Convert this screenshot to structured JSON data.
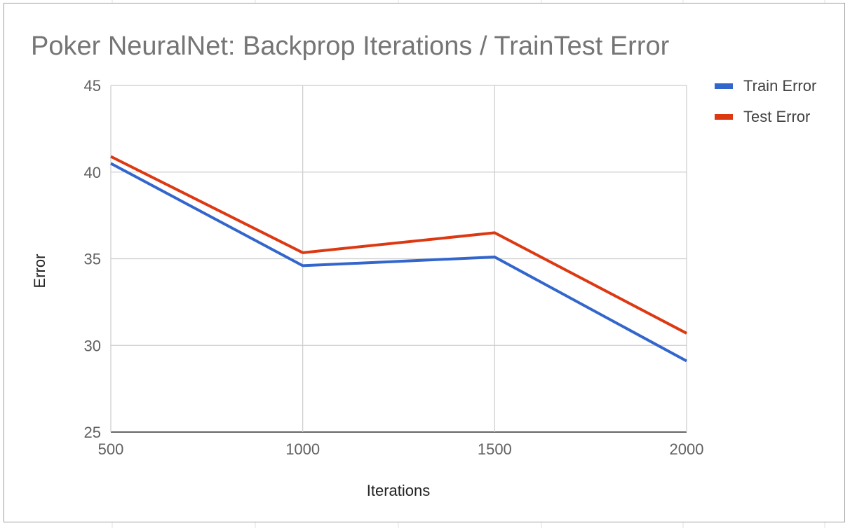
{
  "chart_data": {
    "type": "line",
    "title": "Poker NeuralNet:  Backprop Iterations / TrainTest Error",
    "xlabel": "Iterations",
    "ylabel": "Error",
    "x": [
      500,
      1000,
      1500,
      2000
    ],
    "x_tick_labels": [
      "500",
      "1000",
      "1500",
      "2000"
    ],
    "ylim": [
      25,
      45
    ],
    "y_ticks": [
      25,
      30,
      35,
      40,
      45
    ],
    "y_tick_labels": [
      "25",
      "30",
      "35",
      "40",
      "45"
    ],
    "grid": true,
    "legend_position": "right",
    "series": [
      {
        "name": "Train Error",
        "color": "#3366cc",
        "values": [
          40.5,
          34.6,
          35.1,
          29.1
        ]
      },
      {
        "name": "Test Error",
        "color": "#dc3912",
        "values": [
          40.9,
          35.35,
          36.5,
          30.7
        ]
      }
    ]
  }
}
